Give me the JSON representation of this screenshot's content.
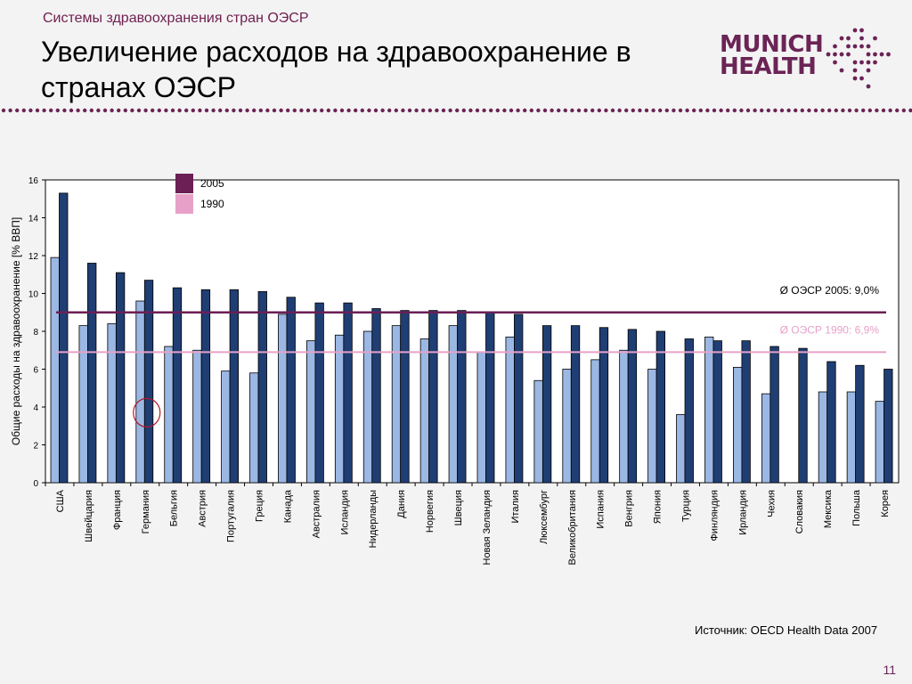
{
  "header": {
    "subtitle": "Системы здравоохранения стран ОЭСР",
    "title_line1": "Увеличение расходов на здравоохранение в",
    "title_line2": "странах ОЭСР"
  },
  "logo": {
    "line1": "MUNICH",
    "line2": "HEALTH"
  },
  "colors": {
    "brand": "#6b2456",
    "bar1990": "#9bb7e3",
    "bar2005": "#1f3e73",
    "avg2005": "#6b1f55",
    "avg1990": "#e7a1c8"
  },
  "chart_data": {
    "type": "bar",
    "ylabel": "Общие расходы на здравоохранение [% ВВП]",
    "ylim": [
      0,
      16
    ],
    "yticks": [
      "0",
      "2",
      "4",
      "6",
      "8",
      "10",
      "12",
      "14",
      "16"
    ],
    "categories": [
      "США",
      "Швейцария",
      "Франция",
      "Германия",
      "Бельгия",
      "Австрия",
      "Португалия",
      "Греция",
      "Канада",
      "Австралия",
      "Исландия",
      "Нидерланды",
      "Дания",
      "Норвегия",
      "Швеция",
      "Новая Зеландия",
      "Италия",
      "Люксембург",
      "Великобритания",
      "Испания",
      "Венгрия",
      "Япония",
      "Турция",
      "Финляндия",
      "Ирландия",
      "Чехия",
      "Словакия",
      "Мексика",
      "Польша",
      "Корея"
    ],
    "series": [
      {
        "name": "1990",
        "values": [
          11.9,
          8.3,
          8.4,
          9.6,
          7.2,
          7.0,
          5.9,
          5.8,
          8.9,
          7.5,
          7.8,
          8.0,
          8.3,
          7.6,
          8.3,
          6.9,
          7.7,
          5.4,
          6.0,
          6.5,
          7.0,
          6.0,
          3.6,
          7.7,
          6.1,
          4.7,
          null,
          4.8,
          4.8,
          4.3
        ]
      },
      {
        "name": "2005",
        "values": [
          15.3,
          11.6,
          11.1,
          10.7,
          10.3,
          10.2,
          10.2,
          10.1,
          9.8,
          9.5,
          9.5,
          9.2,
          9.1,
          9.1,
          9.1,
          9.0,
          8.9,
          8.3,
          8.3,
          8.2,
          8.1,
          8.0,
          7.6,
          7.5,
          7.5,
          7.2,
          7.1,
          6.4,
          6.2,
          6.0
        ]
      }
    ],
    "legend": [
      "2005",
      "1990"
    ],
    "reference_lines": [
      {
        "label": "Ø ОЭСР 2005: 9,0%",
        "value": 9.0
      },
      {
        "label": "Ø ОЭСР 1990: 6,9%",
        "value": 6.9
      }
    ],
    "highlight_category": "Германия"
  },
  "source_text": "Источник: OECD Health Data 2007",
  "page_number": "11"
}
